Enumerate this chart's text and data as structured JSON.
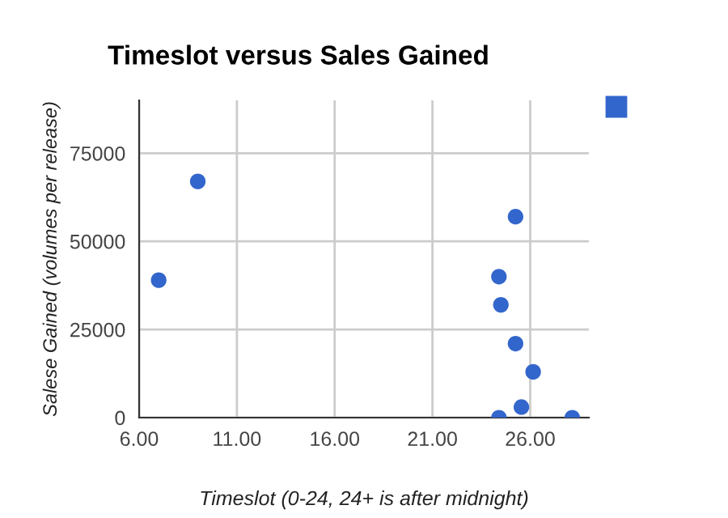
{
  "chart_data": {
    "type": "scatter",
    "title": "Timeslot versus Sales Gained",
    "xlabel": "Timeslot (0-24, 24+ is after midnight)",
    "ylabel": "Salese Gained (volumes per release)",
    "series": [
      {
        "color": "#3366cc",
        "x": [
          7.0,
          9.0,
          24.4,
          24.5,
          25.25,
          25.25,
          26.15,
          25.55,
          24.4,
          28.15
        ],
        "values": [
          39000,
          67000,
          40000,
          32000,
          57000,
          21000,
          13000,
          3000,
          0,
          0
        ]
      }
    ],
    "xlim": [
      6,
      29
    ],
    "ylim": [
      0,
      90000
    ],
    "xticks": [
      {
        "value": 6,
        "label": "6.00"
      },
      {
        "value": 11,
        "label": "11.00"
      },
      {
        "value": 16,
        "label": "16.00"
      },
      {
        "value": 21,
        "label": "21.00"
      },
      {
        "value": 26,
        "label": "26.00"
      }
    ],
    "yticks": [
      0,
      25000,
      50000,
      75000
    ],
    "grid": true,
    "marker": "circle"
  }
}
